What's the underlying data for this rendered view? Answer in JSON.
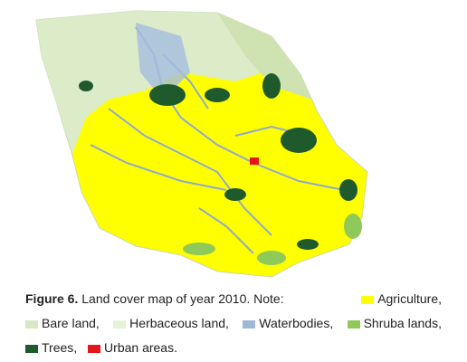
{
  "caption": {
    "label": "Figure 6.",
    "text": "Land cover map of year 2010. Note:"
  },
  "legend": [
    {
      "label": "Agriculture,",
      "color": "#ffff00"
    },
    {
      "label": "Bare land,",
      "color": "#d9e8c4"
    },
    {
      "label": "Herbaceous land,",
      "color": "#e6f2d6"
    },
    {
      "label": "Waterbodies,",
      "color": "#9fb8d8"
    },
    {
      "label": "Shruba lands,",
      "color": "#8fc95a"
    },
    {
      "label": "Trees,",
      "color": "#1f5a2c"
    },
    {
      "label": "Urban areas.",
      "color": "#e8141c"
    }
  ]
}
